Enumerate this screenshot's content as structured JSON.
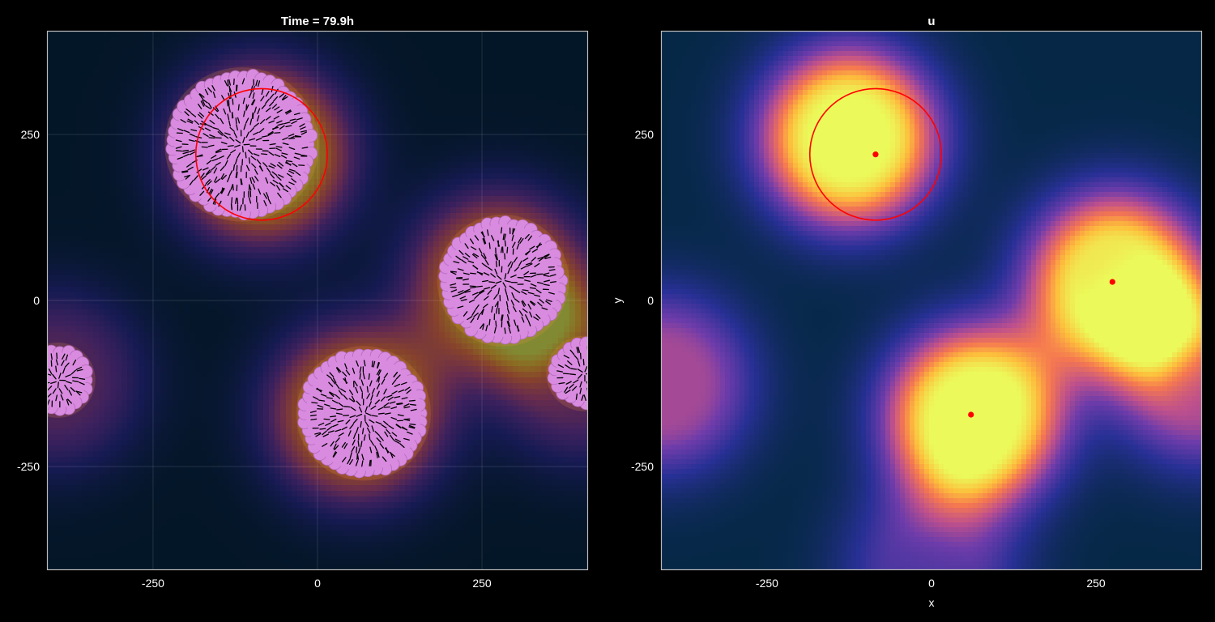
{
  "chart_data": [
    {
      "type": "heatmap",
      "title": "Time = 79.9h",
      "xlabel": "",
      "ylabel": "",
      "xlim": [
        -410,
        410
      ],
      "ylim": [
        -405,
        405
      ],
      "xticks": [
        -250,
        0,
        250
      ],
      "yticks": [
        -250,
        0,
        250
      ],
      "grid": true,
      "background_field_sources": [
        {
          "x": -85,
          "y": 220,
          "strength": 1.0
        },
        {
          "x": 60,
          "y": -170,
          "strength": 0.9
        },
        {
          "x": 275,
          "y": 30,
          "strength": 0.85
        },
        {
          "x": -400,
          "y": -120,
          "strength": 0.5
        },
        {
          "x": 400,
          "y": -110,
          "strength": 0.5
        }
      ],
      "cell_clusters": [
        {
          "cx": -115,
          "cy": 235,
          "r": 105
        },
        {
          "cx": 70,
          "cy": -170,
          "r": 90
        },
        {
          "cx": 282,
          "cy": 30,
          "r": 88
        },
        {
          "cx": -395,
          "cy": -120,
          "r": 45
        },
        {
          "cx": 405,
          "cy": -110,
          "r": 45
        }
      ],
      "circles": [
        {
          "cx": -85,
          "cy": 220,
          "r": 100,
          "color": "#ff0000"
        }
      ],
      "colors": {
        "cell_fill": "#d98be0",
        "cell_edge": "#b36bbd",
        "director": "#000000",
        "circle": "#ff0000"
      }
    },
    {
      "type": "heatmap",
      "title": "u",
      "xlabel": "x",
      "ylabel": "y",
      "xlim": [
        -410,
        410
      ],
      "ylim": [
        -405,
        405
      ],
      "xticks": [
        -250,
        0,
        250
      ],
      "yticks": [
        -250,
        0,
        250
      ],
      "grid": false,
      "colormap": "plasma",
      "field_sources": [
        {
          "x": -125,
          "y": 245,
          "strength": 1.0
        },
        {
          "x": 65,
          "y": -175,
          "strength": 1.0
        },
        {
          "x": 280,
          "y": 28,
          "strength": 0.95
        },
        {
          "x": -410,
          "y": -125,
          "strength": 0.55
        },
        {
          "x": 410,
          "y": -115,
          "strength": 0.55
        },
        {
          "x": 0,
          "y": -405,
          "strength": 0.35
        }
      ],
      "centers": [
        {
          "x": -85,
          "y": 220
        },
        {
          "x": 60,
          "y": -172
        },
        {
          "x": 275,
          "y": 28
        }
      ],
      "circles": [
        {
          "cx": -85,
          "cy": 220,
          "r": 100,
          "color": "#ff0000"
        }
      ],
      "colors": {
        "center": "#ff0000",
        "circle": "#ff0000"
      }
    }
  ]
}
